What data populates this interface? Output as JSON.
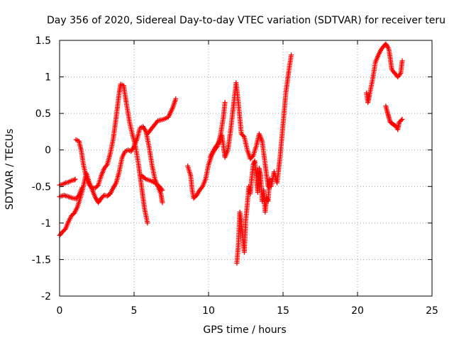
{
  "chart_data": {
    "type": "scatter",
    "title": "Day 356 of 2020, Sidereal Day-to-day VTEC variation (SDTVAR) for receiver teru",
    "xlabel": "GPS time / hours",
    "ylabel": "SDTVAR / TECUs",
    "xlim": [
      0,
      25
    ],
    "ylim": [
      -2,
      1.5
    ],
    "xticks": [
      "0",
      "5",
      "10",
      "15",
      "20",
      "25"
    ],
    "yticks": [
      "-2",
      "-1.5",
      "-1",
      "-0.5",
      "0",
      "0.5",
      "1",
      "1.5"
    ],
    "grid": true,
    "marker": "plus",
    "color": "#ff0000",
    "series": [
      {
        "tracks": [
          [
            [
              0.0,
              -1.17
            ],
            [
              0.2,
              -1.12
            ],
            [
              0.4,
              -1.08
            ],
            [
              0.6,
              -0.98
            ],
            [
              0.8,
              -0.9
            ],
            [
              1.0,
              -0.86
            ],
            [
              1.2,
              -0.78
            ],
            [
              1.4,
              -0.65
            ],
            [
              1.6,
              -0.5
            ],
            [
              1.7,
              -0.4
            ],
            [
              1.8,
              -0.32
            ],
            [
              2.0,
              -0.45
            ],
            [
              2.2,
              -0.55
            ],
            [
              2.4,
              -0.65
            ],
            [
              2.6,
              -0.72
            ],
            [
              2.8,
              -0.66
            ],
            [
              3.0,
              -0.62
            ],
            [
              3.2,
              -0.63
            ],
            [
              3.4,
              -0.6
            ],
            [
              3.6,
              -0.52
            ],
            [
              3.8,
              -0.45
            ],
            [
              4.0,
              -0.3
            ],
            [
              4.2,
              -0.1
            ],
            [
              4.4,
              -0.02
            ],
            [
              4.6,
              0.0
            ],
            [
              4.8,
              -0.02
            ],
            [
              5.0,
              0.05
            ],
            [
              5.2,
              0.15
            ],
            [
              5.4,
              0.3
            ],
            [
              5.6,
              0.32
            ],
            [
              5.8,
              0.25
            ],
            [
              6.0,
              0.05
            ],
            [
              6.2,
              -0.2
            ],
            [
              6.4,
              -0.4
            ],
            [
              6.6,
              -0.5
            ],
            [
              6.8,
              -0.6
            ],
            [
              6.9,
              -0.72
            ]
          ],
          [
            [
              0.0,
              -0.48
            ],
            [
              0.2,
              -0.47
            ],
            [
              0.4,
              -0.45
            ],
            [
              0.6,
              -0.44
            ],
            [
              0.8,
              -0.42
            ],
            [
              1.0,
              -0.41
            ],
            [
              1.05,
              -0.4
            ]
          ],
          [
            [
              0.0,
              -0.64
            ],
            [
              0.3,
              -0.62
            ],
            [
              0.6,
              -0.64
            ],
            [
              0.9,
              -0.66
            ],
            [
              1.1,
              -0.67
            ],
            [
              1.3,
              -0.62
            ],
            [
              1.5,
              -0.52
            ]
          ],
          [
            [
              1.1,
              0.14
            ],
            [
              1.3,
              0.12
            ],
            [
              1.45,
              0.0
            ],
            [
              1.6,
              -0.2
            ],
            [
              1.8,
              -0.38
            ],
            [
              2.0,
              -0.48
            ],
            [
              2.2,
              -0.52
            ],
            [
              2.4,
              -0.52
            ],
            [
              2.6,
              -0.48
            ],
            [
              2.8,
              -0.35
            ],
            [
              3.0,
              -0.25
            ],
            [
              3.2,
              -0.2
            ],
            [
              3.4,
              -0.05
            ],
            [
              3.6,
              0.15
            ],
            [
              3.8,
              0.45
            ],
            [
              4.0,
              0.78
            ],
            [
              4.1,
              0.9
            ],
            [
              4.3,
              0.88
            ],
            [
              4.5,
              0.62
            ],
            [
              4.7,
              0.38
            ],
            [
              4.9,
              0.2
            ],
            [
              5.1,
              0.05
            ],
            [
              5.3,
              -0.2
            ],
            [
              5.5,
              -0.5
            ],
            [
              5.7,
              -0.8
            ],
            [
              5.9,
              -1.0
            ]
          ],
          [
            [
              5.9,
              0.22
            ],
            [
              6.2,
              0.3
            ],
            [
              6.6,
              0.4
            ],
            [
              7.0,
              0.42
            ],
            [
              7.3,
              0.45
            ],
            [
              7.6,
              0.58
            ],
            [
              7.8,
              0.7
            ]
          ],
          [
            [
              5.5,
              -0.35
            ],
            [
              5.8,
              -0.4
            ],
            [
              6.1,
              -0.42
            ],
            [
              6.4,
              -0.45
            ],
            [
              6.7,
              -0.5
            ],
            [
              6.9,
              -0.55
            ]
          ]
        ]
      },
      {
        "tracks": [
          [
            [
              8.6,
              -0.22
            ],
            [
              8.8,
              -0.35
            ],
            [
              8.9,
              -0.55
            ],
            [
              9.0,
              -0.66
            ],
            [
              9.2,
              -0.62
            ],
            [
              9.4,
              -0.55
            ],
            [
              9.6,
              -0.5
            ],
            [
              9.8,
              -0.4
            ],
            [
              10.0,
              -0.2
            ],
            [
              10.2,
              -0.08
            ],
            [
              10.4,
              0.0
            ],
            [
              10.6,
              0.05
            ],
            [
              10.8,
              0.2
            ],
            [
              11.0,
              0.45
            ],
            [
              11.1,
              0.65
            ]
          ],
          [
            [
              10.1,
              -0.1
            ],
            [
              10.3,
              -0.02
            ],
            [
              10.5,
              0.05
            ],
            [
              10.7,
              0.1
            ],
            [
              10.9,
              0.2
            ],
            [
              11.1,
              -0.1
            ],
            [
              11.3,
              0.0
            ],
            [
              11.5,
              0.3
            ],
            [
              11.7,
              0.65
            ],
            [
              11.85,
              0.92
            ],
            [
              12.0,
              0.65
            ],
            [
              12.2,
              0.22
            ],
            [
              12.4,
              0.18
            ],
            [
              12.6,
              0.0
            ],
            [
              12.8,
              -0.12
            ],
            [
              13.0,
              -0.08
            ],
            [
              13.2,
              0.05
            ],
            [
              13.4,
              0.22
            ],
            [
              13.6,
              0.12
            ],
            [
              13.8,
              -0.2
            ],
            [
              14.0,
              -0.5
            ],
            [
              14.2,
              -0.5
            ],
            [
              14.4,
              -0.3
            ],
            [
              14.6,
              -0.45
            ],
            [
              14.8,
              -0.1
            ],
            [
              15.0,
              0.35
            ],
            [
              15.2,
              0.8
            ],
            [
              15.4,
              1.1
            ],
            [
              15.55,
              1.3
            ]
          ],
          [
            [
              11.9,
              -1.55
            ],
            [
              12.0,
              -1.3
            ],
            [
              12.1,
              -0.85
            ],
            [
              12.2,
              -1.0
            ],
            [
              12.3,
              -1.2
            ],
            [
              12.4,
              -1.4
            ],
            [
              12.5,
              -0.95
            ],
            [
              12.6,
              -0.75
            ],
            [
              12.7,
              -0.5
            ],
            [
              12.8,
              -0.6
            ],
            [
              12.9,
              -0.38
            ],
            [
              13.0,
              -0.2
            ],
            [
              13.1,
              -0.15
            ],
            [
              13.2,
              -0.35
            ],
            [
              13.3,
              -0.58
            ],
            [
              13.4,
              -0.25
            ],
            [
              13.5,
              -0.35
            ],
            [
              13.6,
              -0.7
            ],
            [
              13.7,
              -0.55
            ],
            [
              13.8,
              -0.85
            ],
            [
              13.9,
              -0.65
            ],
            [
              14.0,
              -0.7
            ],
            [
              14.1,
              -0.4
            ]
          ]
        ]
      },
      {
        "tracks": [
          [
            [
              20.6,
              0.78
            ],
            [
              20.7,
              0.65
            ],
            [
              20.8,
              0.75
            ],
            [
              21.0,
              0.95
            ],
            [
              21.2,
              1.2
            ],
            [
              21.4,
              1.3
            ],
            [
              21.6,
              1.38
            ],
            [
              21.8,
              1.43
            ],
            [
              21.9,
              1.45
            ],
            [
              22.0,
              1.42
            ],
            [
              22.1,
              1.38
            ],
            [
              22.2,
              1.25
            ],
            [
              22.3,
              1.1
            ],
            [
              22.5,
              1.05
            ],
            [
              22.7,
              1.0
            ],
            [
              22.9,
              1.05
            ],
            [
              23.0,
              1.22
            ]
          ],
          [
            [
              21.9,
              0.6
            ],
            [
              22.0,
              0.52
            ],
            [
              22.1,
              0.45
            ],
            [
              22.2,
              0.38
            ],
            [
              22.4,
              0.35
            ],
            [
              22.6,
              0.32
            ],
            [
              22.7,
              0.28
            ],
            [
              22.8,
              0.38
            ],
            [
              23.0,
              0.42
            ]
          ]
        ]
      }
    ]
  }
}
